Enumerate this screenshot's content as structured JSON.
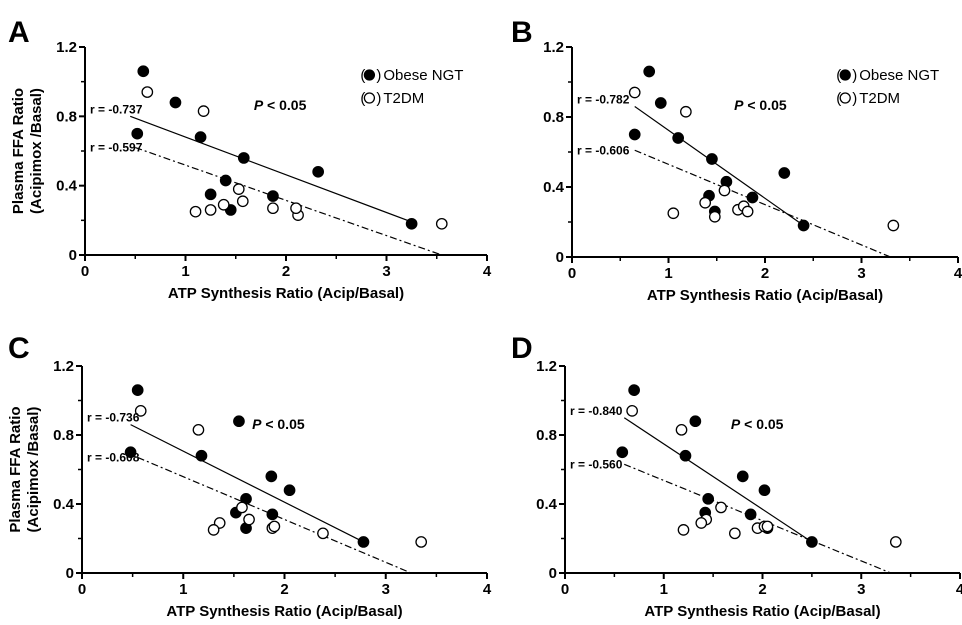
{
  "chart_data": [
    {
      "type": "scatter",
      "panel_label": "A",
      "xlabel": "ATP Synthesis Ratio (Acip/Basal)",
      "ylabel": [
        "Plasma FFA Ratio",
        "(Acipimox /Basal)"
      ],
      "xlim": [
        0,
        4
      ],
      "ylim": [
        0,
        1.2
      ],
      "x_ticks": [
        "0",
        "1",
        "2",
        "3",
        "4"
      ],
      "y_ticks": [
        "0",
        "0.4",
        "0.8",
        "1.2"
      ],
      "legend": {
        "entries": [
          "Obese NGT",
          "T2DM"
        ],
        "position": "top-right"
      },
      "p_text": "P < 0.05",
      "series": [
        {
          "name": "Obese NGT",
          "marker": "filled-circle",
          "points": [
            [
              0.58,
              1.06
            ],
            [
              0.52,
              0.7
            ],
            [
              0.9,
              0.88
            ],
            [
              1.15,
              0.68
            ],
            [
              1.25,
              0.35
            ],
            [
              1.4,
              0.43
            ],
            [
              1.45,
              0.26
            ],
            [
              1.58,
              0.56
            ],
            [
              1.87,
              0.34
            ],
            [
              2.32,
              0.48
            ],
            [
              3.25,
              0.18
            ]
          ],
          "fit": {
            "x": [
              0.45,
              3.3
            ],
            "y": [
              0.8,
              0.18
            ],
            "style": "solid",
            "r_text": "r = -0.737"
          }
        },
        {
          "name": "T2DM",
          "marker": "open-circle",
          "points": [
            [
              0.62,
              0.94
            ],
            [
              1.18,
              0.83
            ],
            [
              1.53,
              0.38
            ],
            [
              1.57,
              0.31
            ],
            [
              1.87,
              0.27
            ],
            [
              2.12,
              0.23
            ],
            [
              2.1,
              0.27
            ],
            [
              1.38,
              0.29
            ],
            [
              1.25,
              0.26
            ],
            [
              1.1,
              0.25
            ],
            [
              3.55,
              0.18
            ]
          ],
          "fit": {
            "x": [
              0.5,
              3.55
            ],
            "y": [
              0.62,
              0.0
            ],
            "style": "dashdot",
            "r_text": "r = -0.597"
          }
        }
      ]
    },
    {
      "type": "scatter",
      "panel_label": "B",
      "xlabel": "ATP Synthesis Ratio (Acip/Basal)",
      "ylabel": [],
      "xlim": [
        0,
        4
      ],
      "ylim": [
        0,
        1.2
      ],
      "x_ticks": [
        "0",
        "1",
        "2",
        "3",
        "4"
      ],
      "y_ticks": [
        "0",
        "0.4",
        "0.8",
        "1.2"
      ],
      "legend": {
        "entries": [
          "Obese NGT",
          "T2DM"
        ],
        "position": "top-right"
      },
      "p_text": "P < 0.05",
      "series": [
        {
          "name": "Obese NGT",
          "marker": "filled-circle",
          "points": [
            [
              0.8,
              1.06
            ],
            [
              0.65,
              0.7
            ],
            [
              0.92,
              0.88
            ],
            [
              1.1,
              0.68
            ],
            [
              1.45,
              0.56
            ],
            [
              1.6,
              0.43
            ],
            [
              1.42,
              0.35
            ],
            [
              1.48,
              0.26
            ],
            [
              1.87,
              0.34
            ],
            [
              2.2,
              0.48
            ],
            [
              2.4,
              0.18
            ]
          ],
          "fit": {
            "x": [
              0.65,
              2.4
            ],
            "y": [
              0.86,
              0.18
            ],
            "style": "solid",
            "r_text": "r = -0.782"
          }
        },
        {
          "name": "T2DM",
          "marker": "open-circle",
          "points": [
            [
              0.65,
              0.94
            ],
            [
              1.18,
              0.83
            ],
            [
              1.58,
              0.38
            ],
            [
              1.38,
              0.31
            ],
            [
              1.48,
              0.23
            ],
            [
              1.72,
              0.27
            ],
            [
              1.78,
              0.29
            ],
            [
              1.82,
              0.26
            ],
            [
              1.05,
              0.25
            ],
            [
              3.33,
              0.18
            ]
          ],
          "fit": {
            "x": [
              0.65,
              3.3
            ],
            "y": [
              0.61,
              0.0
            ],
            "style": "dashdot",
            "r_text": "r = -0.606"
          }
        }
      ]
    },
    {
      "type": "scatter",
      "panel_label": "C",
      "xlabel": "ATP Synthesis Ratio (Acip/Basal)",
      "ylabel": [
        "Plasma FFA Ratio",
        "(Acipimox /Basal)"
      ],
      "xlim": [
        0,
        4
      ],
      "ylim": [
        0,
        1.2
      ],
      "x_ticks": [
        "0",
        "1",
        "2",
        "3",
        "4"
      ],
      "y_ticks": [
        "0",
        "0.4",
        "0.8",
        "1.2"
      ],
      "legend": null,
      "p_text": "P < 0.05",
      "series": [
        {
          "name": "Obese NGT",
          "marker": "filled-circle",
          "points": [
            [
              0.55,
              1.06
            ],
            [
              0.48,
              0.7
            ],
            [
              1.18,
              0.68
            ],
            [
              1.55,
              0.88
            ],
            [
              1.62,
              0.43
            ],
            [
              1.52,
              0.35
            ],
            [
              1.62,
              0.26
            ],
            [
              1.87,
              0.56
            ],
            [
              1.88,
              0.34
            ],
            [
              2.05,
              0.48
            ],
            [
              2.78,
              0.18
            ]
          ],
          "fit": {
            "x": [
              0.48,
              2.78
            ],
            "y": [
              0.86,
              0.18
            ],
            "style": "solid",
            "r_text": "r = -0.736"
          }
        },
        {
          "name": "T2DM",
          "marker": "open-circle",
          "points": [
            [
              0.58,
              0.94
            ],
            [
              1.15,
              0.83
            ],
            [
              1.58,
              0.38
            ],
            [
              1.65,
              0.31
            ],
            [
              1.36,
              0.29
            ],
            [
              1.3,
              0.25
            ],
            [
              1.88,
              0.26
            ],
            [
              1.9,
              0.27
            ],
            [
              2.38,
              0.23
            ],
            [
              3.35,
              0.18
            ]
          ],
          "fit": {
            "x": [
              0.55,
              3.25
            ],
            "y": [
              0.67,
              0.0
            ],
            "style": "dashdot",
            "r_text": "r = -0.608"
          }
        }
      ]
    },
    {
      "type": "scatter",
      "panel_label": "D",
      "xlabel": "ATP Synthesis Ratio (Acip/Basal)",
      "ylabel": [],
      "xlim": [
        0,
        4
      ],
      "ylim": [
        0,
        1.2
      ],
      "x_ticks": [
        "0",
        "1",
        "2",
        "3",
        "4"
      ],
      "y_ticks": [
        "0",
        "0.4",
        "0.8",
        "1.2"
      ],
      "legend": null,
      "p_text": "P < 0.05",
      "series": [
        {
          "name": "Obese NGT",
          "marker": "filled-circle",
          "points": [
            [
              0.7,
              1.06
            ],
            [
              0.58,
              0.7
            ],
            [
              1.22,
              0.68
            ],
            [
              1.32,
              0.88
            ],
            [
              1.45,
              0.43
            ],
            [
              1.42,
              0.35
            ],
            [
              1.8,
              0.56
            ],
            [
              1.88,
              0.34
            ],
            [
              2.02,
              0.48
            ],
            [
              2.05,
              0.26
            ],
            [
              2.5,
              0.18
            ]
          ],
          "fit": {
            "x": [
              0.6,
              2.5
            ],
            "y": [
              0.9,
              0.18
            ],
            "style": "solid",
            "r_text": "r = -0.840"
          }
        },
        {
          "name": "T2DM",
          "marker": "open-circle",
          "points": [
            [
              0.68,
              0.94
            ],
            [
              1.18,
              0.83
            ],
            [
              1.58,
              0.38
            ],
            [
              1.43,
              0.31
            ],
            [
              1.38,
              0.29
            ],
            [
              1.2,
              0.25
            ],
            [
              1.72,
              0.23
            ],
            [
              1.95,
              0.26
            ],
            [
              2.02,
              0.27
            ],
            [
              2.05,
              0.27
            ],
            [
              3.35,
              0.18
            ]
          ],
          "fit": {
            "x": [
              0.6,
              3.3
            ],
            "y": [
              0.63,
              0.0
            ],
            "style": "dashdot",
            "r_text": "r = -0.560"
          }
        }
      ]
    }
  ]
}
